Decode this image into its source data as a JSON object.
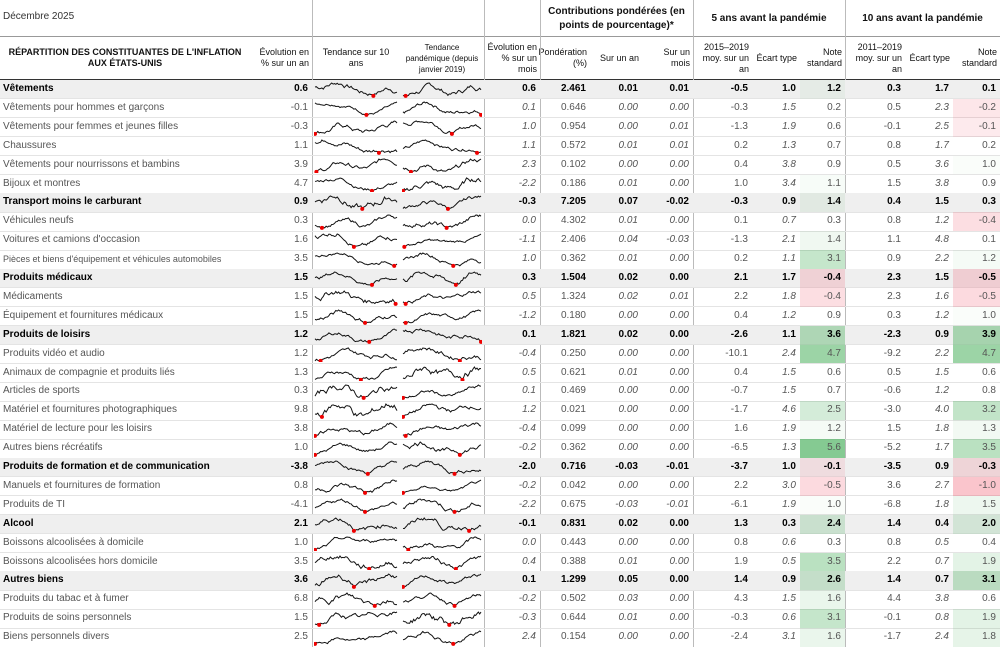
{
  "header": {
    "date": "Décembre 2025",
    "groups": [
      "Contributions pondérées (en points de pourcentage)*",
      "5 ans avant la pandémie",
      "10 ans avant la pandémie"
    ],
    "columns": [
      "RÉPARTITION DES CONSTITUANTES DE L'INFLATION AUX ÉTATS-UNIS",
      "Évolution en % sur un an",
      "Tendance sur 10 ans",
      "Tendance pandémique (depuis janvier 2019)",
      "Évolution en % sur un mois",
      "Pondération (%)",
      "Sur un an",
      "Sur un mois",
      "2015–2019 moy. sur un an",
      "Écart type",
      "Note standard",
      "2011–2019 moy. sur un an",
      "Écart type",
      "Note standard"
    ]
  },
  "rows": [
    {
      "name": "Vêtements",
      "bold": true,
      "cells": [
        "0.6",
        "0.6",
        "2.461",
        "0.01",
        "0.01",
        "-0.5",
        "1.0",
        "1.2",
        "0.3",
        "1.7",
        "0.1"
      ]
    },
    {
      "name": "Vêtements pour hommes et garçons",
      "bold": false,
      "cells": [
        "-0.1",
        "0.1",
        "0.646",
        "0.00",
        "0.00",
        "-0.3",
        "1.5",
        "0.2",
        "0.5",
        "2.3",
        "-0.2"
      ]
    },
    {
      "name": "Vêtements pour femmes et jeunes filles",
      "bold": false,
      "cells": [
        "-0.3",
        "1.0",
        "0.954",
        "0.00",
        "0.01",
        "-1.3",
        "1.9",
        "0.6",
        "-0.1",
        "2.5",
        "-0.1"
      ]
    },
    {
      "name": "Chaussures",
      "bold": false,
      "cells": [
        "1.1",
        "1.1",
        "0.572",
        "0.01",
        "0.01",
        "0.2",
        "1.3",
        "0.7",
        "0.8",
        "1.7",
        "0.2"
      ]
    },
    {
      "name": "Vêtements pour nourrissons et bambins",
      "bold": false,
      "cells": [
        "3.9",
        "2.3",
        "0.102",
        "0.00",
        "0.00",
        "0.4",
        "3.8",
        "0.9",
        "0.5",
        "3.6",
        "1.0"
      ]
    },
    {
      "name": "Bijoux et montres",
      "bold": false,
      "cells": [
        "4.7",
        "-2.2",
        "0.186",
        "0.01",
        "0.00",
        "1.0",
        "3.4",
        "1.1",
        "1.5",
        "3.8",
        "0.9"
      ]
    },
    {
      "name": "Transport moins le carburant",
      "bold": true,
      "cells": [
        "0.9",
        "-0.3",
        "7.205",
        "0.07",
        "-0.02",
        "-0.3",
        "0.9",
        "1.4",
        "0.4",
        "1.5",
        "0.3"
      ]
    },
    {
      "name": "Véhicules neufs",
      "bold": false,
      "cells": [
        "0.3",
        "0.0",
        "4.302",
        "0.01",
        "0.00",
        "0.1",
        "0.7",
        "0.3",
        "0.8",
        "1.2",
        "-0.4"
      ]
    },
    {
      "name": "Voitures et camions d'occasion",
      "bold": false,
      "cells": [
        "1.6",
        "-1.1",
        "2.406",
        "0.04",
        "-0.03",
        "-1.3",
        "2.1",
        "1.4",
        "1.1",
        "4.8",
        "0.1"
      ]
    },
    {
      "name": "Pièces et biens d'équipement et véhicules automobiles",
      "bold": false,
      "cells": [
        "3.5",
        "1.0",
        "0.362",
        "0.01",
        "0.00",
        "0.2",
        "1.1",
        "3.1",
        "0.9",
        "2.2",
        "1.2"
      ]
    },
    {
      "name": "Produits médicaux",
      "bold": true,
      "cells": [
        "1.5",
        "0.3",
        "1.504",
        "0.02",
        "0.00",
        "2.1",
        "1.7",
        "-0.4",
        "2.3",
        "1.5",
        "-0.5"
      ]
    },
    {
      "name": "Médicaments",
      "bold": false,
      "cells": [
        "1.5",
        "0.5",
        "1.324",
        "0.02",
        "0.01",
        "2.2",
        "1.8",
        "-0.4",
        "2.3",
        "1.6",
        "-0.5"
      ]
    },
    {
      "name": "Équipement et fournitures médicaux",
      "bold": false,
      "cells": [
        "1.5",
        "-1.2",
        "0.180",
        "0.00",
        "0.00",
        "0.4",
        "1.2",
        "0.9",
        "0.3",
        "1.2",
        "1.0"
      ]
    },
    {
      "name": "Produits de loisirs",
      "bold": true,
      "cells": [
        "1.2",
        "0.1",
        "1.821",
        "0.02",
        "0.00",
        "-2.6",
        "1.1",
        "3.6",
        "-2.3",
        "0.9",
        "3.9"
      ]
    },
    {
      "name": "Produits vidéo et audio",
      "bold": false,
      "cells": [
        "1.2",
        "-0.4",
        "0.250",
        "0.00",
        "0.00",
        "-10.1",
        "2.4",
        "4.7",
        "-9.2",
        "2.2",
        "4.7"
      ]
    },
    {
      "name": "Animaux de compagnie et produits liés",
      "bold": false,
      "cells": [
        "1.3",
        "0.5",
        "0.621",
        "0.01",
        "0.00",
        "0.4",
        "1.5",
        "0.6",
        "0.5",
        "1.5",
        "0.6"
      ]
    },
    {
      "name": "Articles de sports",
      "bold": false,
      "cells": [
        "0.3",
        "0.1",
        "0.469",
        "0.00",
        "0.00",
        "-0.7",
        "1.5",
        "0.7",
        "-0.6",
        "1.2",
        "0.8"
      ]
    },
    {
      "name": "Matériel et fournitures photographiques",
      "bold": false,
      "cells": [
        "9.8",
        "1.2",
        "0.021",
        "0.00",
        "0.00",
        "-1.7",
        "4.6",
        "2.5",
        "-3.0",
        "4.0",
        "3.2"
      ]
    },
    {
      "name": "Matériel de lecture pour les loisirs",
      "bold": false,
      "cells": [
        "3.8",
        "-0.4",
        "0.099",
        "0.00",
        "0.00",
        "1.6",
        "1.9",
        "1.2",
        "1.5",
        "1.8",
        "1.3"
      ]
    },
    {
      "name": "Autres biens récréatifs",
      "bold": false,
      "cells": [
        "1.0",
        "-0.2",
        "0.362",
        "0.00",
        "0.00",
        "-6.5",
        "1.3",
        "5.6",
        "-5.2",
        "1.7",
        "3.5"
      ]
    },
    {
      "name": "Produits de formation et de communication",
      "bold": true,
      "cells": [
        "-3.8",
        "-2.0",
        "0.716",
        "-0.03",
        "-0.01",
        "-3.7",
        "1.0",
        "-0.1",
        "-3.5",
        "0.9",
        "-0.3"
      ]
    },
    {
      "name": "Manuels et fournitures de formation",
      "bold": false,
      "cells": [
        "0.8",
        "-0.2",
        "0.042",
        "0.00",
        "0.00",
        "2.2",
        "3.0",
        "-0.5",
        "3.6",
        "2.7",
        "-1.0"
      ]
    },
    {
      "name": "Produits de TI",
      "bold": false,
      "cells": [
        "-4.1",
        "-2.2",
        "0.675",
        "-0.03",
        "-0.01",
        "-6.1",
        "1.9",
        "1.0",
        "-6.8",
        "1.8",
        "1.5"
      ]
    },
    {
      "name": "Alcool",
      "bold": true,
      "cells": [
        "2.1",
        "-0.1",
        "0.831",
        "0.02",
        "0.00",
        "1.3",
        "0.3",
        "2.4",
        "1.4",
        "0.4",
        "2.0"
      ]
    },
    {
      "name": "Boissons alcoolisées à domicile",
      "bold": false,
      "cells": [
        "1.0",
        "0.0",
        "0.443",
        "0.00",
        "0.00",
        "0.8",
        "0.6",
        "0.3",
        "0.8",
        "0.5",
        "0.4"
      ]
    },
    {
      "name": "Boissons alcoolisées hors domicile",
      "bold": false,
      "cells": [
        "3.5",
        "0.4",
        "0.388",
        "0.01",
        "0.00",
        "1.9",
        "0.5",
        "3.5",
        "2.2",
        "0.7",
        "1.9"
      ]
    },
    {
      "name": "Autres biens",
      "bold": true,
      "cells": [
        "3.6",
        "0.1",
        "1.299",
        "0.05",
        "0.00",
        "1.4",
        "0.9",
        "2.6",
        "1.4",
        "0.7",
        "3.1"
      ]
    },
    {
      "name": "Produits du tabac et à fumer",
      "bold": false,
      "cells": [
        "6.8",
        "-0.2",
        "0.502",
        "0.03",
        "0.00",
        "4.3",
        "1.5",
        "1.6",
        "4.4",
        "3.8",
        "0.6"
      ]
    },
    {
      "name": "Produits de soins personnels",
      "bold": false,
      "cells": [
        "1.5",
        "-0.3",
        "0.644",
        "0.01",
        "0.00",
        "-0.3",
        "0.6",
        "3.1",
        "-0.1",
        "0.8",
        "1.9"
      ]
    },
    {
      "name": "Biens personnels divers",
      "bold": false,
      "cells": [
        "2.5",
        "2.4",
        "0.154",
        "0.00",
        "0.00",
        "-2.4",
        "3.1",
        "1.6",
        "-1.7",
        "2.4",
        "1.8"
      ]
    }
  ]
}
